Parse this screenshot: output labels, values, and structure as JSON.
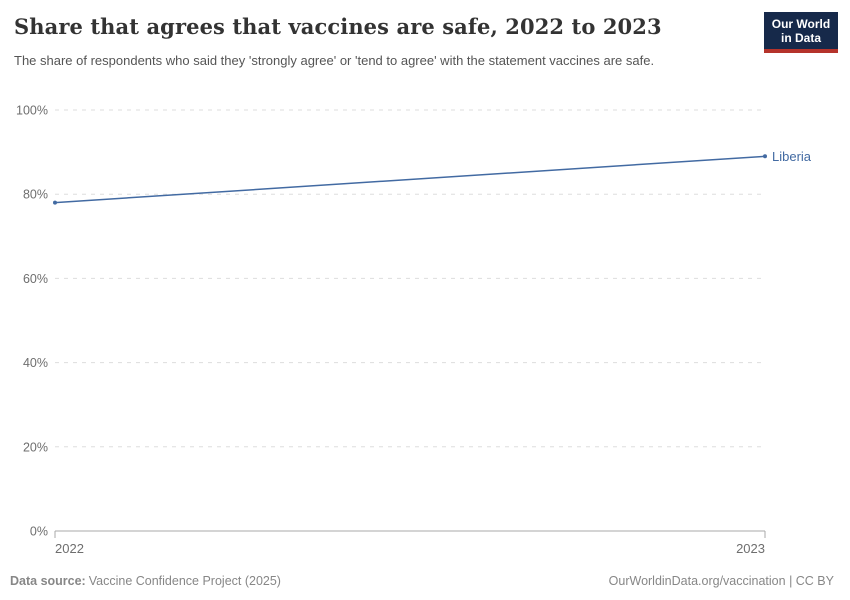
{
  "header": {
    "title": "Share that agrees that vaccines are safe, 2022 to 2023",
    "subtitle": "The share of respondents who said they 'strongly agree' or 'tend to agree' with the statement vaccines are safe.",
    "logo": {
      "line1": "Our World",
      "line2": "in Data"
    }
  },
  "chart_data": {
    "type": "line",
    "title": "Share that agrees that vaccines are safe, 2022 to 2023",
    "x": [
      2022,
      2023
    ],
    "xtick_labels": [
      "2022",
      "2023"
    ],
    "series": [
      {
        "name": "Liberia",
        "values": [
          78,
          89
        ],
        "color": "#426aa2"
      }
    ],
    "ylim": [
      0,
      100
    ],
    "yticks": [
      0,
      20,
      40,
      60,
      80,
      100
    ],
    "ytick_suffix": "%",
    "grid": "horizontal-dashed",
    "legend": "line-end-label"
  },
  "footer": {
    "datasource_label": "Data source:",
    "datasource_value": "Vaccine Confidence Project (2025)",
    "attribution": "OurWorldinData.org/vaccination | CC BY"
  },
  "colors": {
    "accent_line": "#426aa2",
    "grid": "#dddddd",
    "axis": "#a8a8a8",
    "tick_label": "#6e6e6e",
    "logo_bg": "#16294a",
    "logo_bar": "#b5332b"
  }
}
